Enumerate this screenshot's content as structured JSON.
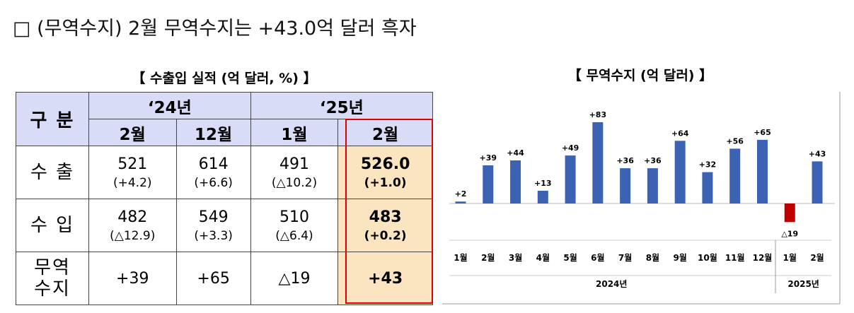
{
  "heading": "□ (무역수지) 2월 무역수지는 +43.0억 달러 흑자",
  "table": {
    "title": "【 수출입 실적 (억 달러, %) 】",
    "corner": "구 분",
    "groups": [
      {
        "label": "‘24년",
        "months": [
          "2월",
          "12월"
        ]
      },
      {
        "label": "‘25년",
        "months": [
          "1월",
          "2월"
        ]
      }
    ],
    "rows": [
      {
        "label": [
          "수 출"
        ],
        "values": [
          "521",
          "614",
          "491",
          "526.0"
        ],
        "changes": [
          "(+4.2)",
          "(+6.6)",
          "(△10.2)",
          "(+1.0)"
        ]
      },
      {
        "label": [
          "수 입"
        ],
        "values": [
          "482",
          "549",
          "510",
          "483"
        ],
        "changes": [
          "(△12.9)",
          "(+3.3)",
          "(△6.4)",
          "(+0.2)"
        ]
      },
      {
        "label": [
          "무역",
          "수지"
        ],
        "values": [
          "+39",
          "+65",
          "△19",
          "+43"
        ]
      }
    ]
  },
  "chart_data": {
    "type": "bar",
    "title": "【 무역수지 (억 달러) 】",
    "categories": [
      "1월",
      "2월",
      "3월",
      "4월",
      "5월",
      "6월",
      "7월",
      "8월",
      "9월",
      "10월",
      "11월",
      "12월",
      "1월",
      "2월"
    ],
    "x_groups": [
      "2024년",
      "2025년"
    ],
    "values": [
      2,
      39,
      44,
      13,
      49,
      83,
      36,
      36,
      64,
      32,
      56,
      65,
      -19,
      43
    ],
    "value_labels": [
      "+2",
      "+39",
      "+44",
      "+13",
      "+49",
      "+83",
      "+36",
      "+36",
      "+64",
      "+32",
      "+56",
      "+65",
      "△19",
      "+43"
    ],
    "color": "#3c62b4",
    "negative_color": "#c00000"
  }
}
